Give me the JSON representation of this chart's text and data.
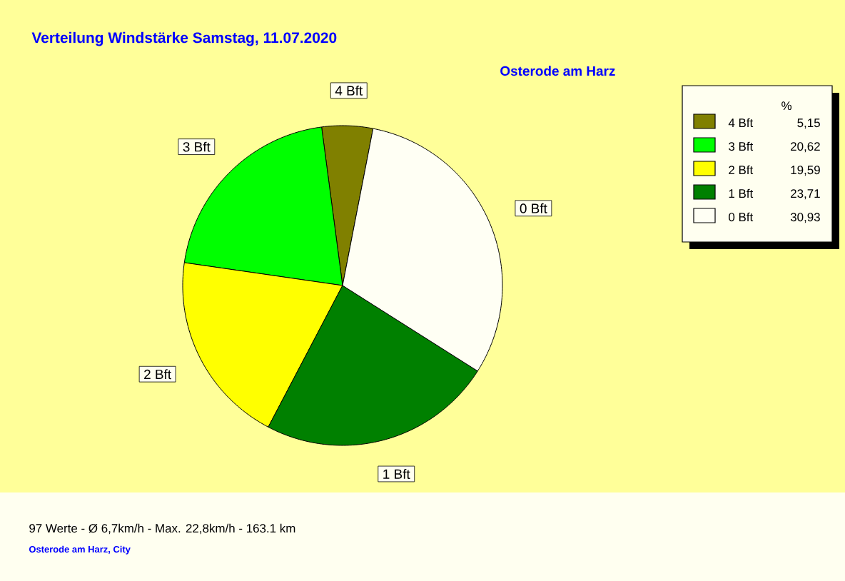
{
  "chart_data": {
    "type": "pie",
    "title": "Verteilung Windstärke  Samstag, 11.07.2020",
    "subtitle": "Osterode am Harz",
    "categories": [
      "4 Bft",
      "3 Bft",
      "2 Bft",
      "1 Bft",
      "0 Bft"
    ],
    "values": [
      5.15,
      20.62,
      19.59,
      23.71,
      30.93
    ],
    "value_labels": [
      "5,15",
      "20,62",
      "19,59",
      "23,71",
      "30,93"
    ],
    "colors": [
      "#808000",
      "#00ff00",
      "#ffff00",
      "#008000",
      "#fffff4"
    ],
    "legend": "top right",
    "legend_title": "%",
    "annotations": [
      "97 Werte   -   Ø 6,7km/h  -  Max. 22,8km/h   -   163.1 km",
      "Osterode am Harz, City"
    ]
  }
}
